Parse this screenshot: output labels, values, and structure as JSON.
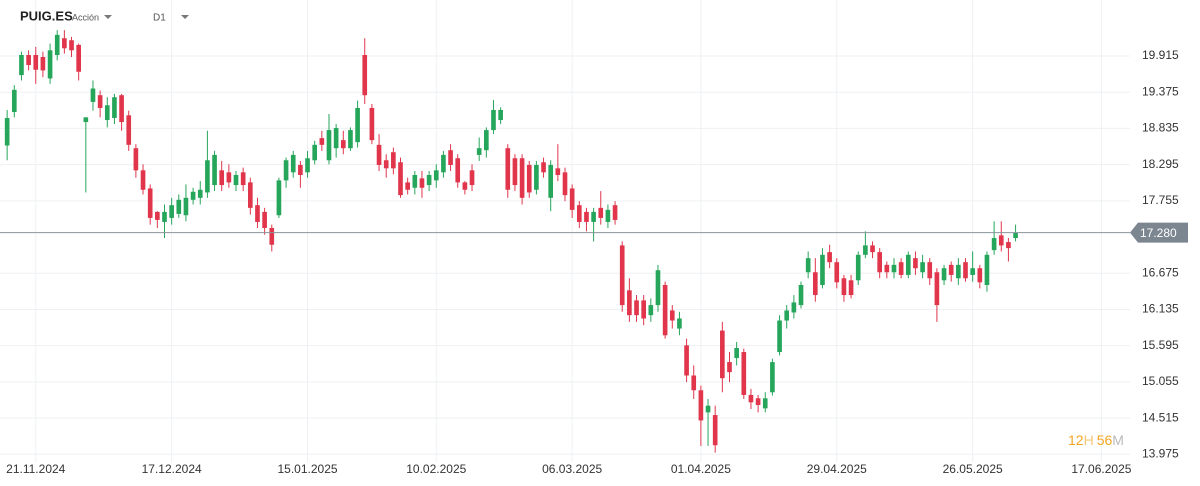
{
  "chart_data": {
    "type": "candlestick",
    "symbol": "PUIG.ES",
    "asset_type": "Acción",
    "timeframe": "D1",
    "up_color": "#26a65b",
    "down_color": "#e0354b",
    "ylim": [
      13.86,
      20.75
    ],
    "yticks": [
      13.975,
      14.515,
      15.055,
      15.595,
      16.135,
      16.675,
      17.755,
      18.295,
      18.835,
      19.375,
      19.915
    ],
    "xlim": [
      -1,
      157
    ],
    "xticks": [
      {
        "value": 4,
        "label": "21.11.2024"
      },
      {
        "value": 23,
        "label": "17.12.2024"
      },
      {
        "value": 42,
        "label": "15.01.2025"
      },
      {
        "value": 60,
        "label": "10.02.2025"
      },
      {
        "value": 79,
        "label": "06.03.2025"
      },
      {
        "value": 97,
        "label": "01.04.2025"
      },
      {
        "value": 116,
        "label": "29.04.2025"
      },
      {
        "value": 135,
        "label": "26.05.2025"
      },
      {
        "value": 153,
        "label": "17.06.2025"
      }
    ],
    "grid": true,
    "last_price": {
      "value": 17.28,
      "label": "17.280"
    },
    "countdown": {
      "hours": 12,
      "hours_unit": "H",
      "minutes": 56,
      "minutes_unit": "M"
    },
    "ohlc": [
      [
        18.58,
        19.11,
        18.36,
        18.99
      ],
      [
        19.08,
        19.48,
        19.0,
        19.41
      ],
      [
        19.63,
        19.98,
        19.55,
        19.93
      ],
      [
        19.93,
        20.0,
        19.7,
        19.78
      ],
      [
        19.93,
        20.05,
        19.5,
        19.71
      ],
      [
        19.9,
        19.98,
        19.6,
        19.7
      ],
      [
        19.58,
        20.1,
        19.5,
        20.0
      ],
      [
        19.93,
        20.3,
        19.85,
        20.23
      ],
      [
        20.18,
        20.3,
        19.95,
        20.03
      ],
      [
        20.15,
        20.2,
        19.9,
        20.0
      ],
      [
        20.08,
        20.1,
        19.55,
        19.68
      ],
      [
        18.93,
        19.0,
        17.88,
        19.0
      ],
      [
        19.23,
        19.55,
        19.1,
        19.43
      ],
      [
        19.33,
        19.4,
        19.0,
        19.14
      ],
      [
        18.96,
        19.3,
        18.85,
        19.18
      ],
      [
        18.99,
        19.35,
        18.9,
        19.3
      ],
      [
        19.33,
        19.35,
        18.8,
        18.93
      ],
      [
        19.03,
        19.1,
        18.5,
        18.59
      ],
      [
        18.54,
        18.6,
        18.1,
        18.21
      ],
      [
        18.21,
        18.3,
        17.85,
        17.92
      ],
      [
        17.94,
        18.0,
        17.4,
        17.5
      ],
      [
        17.59,
        17.6,
        17.35,
        17.47
      ],
      [
        17.44,
        17.7,
        17.2,
        17.59
      ],
      [
        17.5,
        17.8,
        17.4,
        17.69
      ],
      [
        17.56,
        17.85,
        17.5,
        17.77
      ],
      [
        17.54,
        18.0,
        17.45,
        17.8
      ],
      [
        17.77,
        17.95,
        17.7,
        17.89
      ],
      [
        17.8,
        18.05,
        17.7,
        17.92
      ],
      [
        17.88,
        18.8,
        17.8,
        18.36
      ],
      [
        17.99,
        18.5,
        17.9,
        18.44
      ],
      [
        18.21,
        18.35,
        17.9,
        17.99
      ],
      [
        18.18,
        18.3,
        17.95,
        18.03
      ],
      [
        17.99,
        18.2,
        17.9,
        18.14
      ],
      [
        18.18,
        18.25,
        17.9,
        17.99
      ],
      [
        18.03,
        18.1,
        17.55,
        17.65
      ],
      [
        17.69,
        17.8,
        17.35,
        17.44
      ],
      [
        17.59,
        17.65,
        17.25,
        17.35
      ],
      [
        17.35,
        17.4,
        17.0,
        17.1
      ],
      [
        17.54,
        18.1,
        17.5,
        18.06
      ],
      [
        18.06,
        18.4,
        17.95,
        18.36
      ],
      [
        18.18,
        18.5,
        18.1,
        18.44
      ],
      [
        18.29,
        18.35,
        17.95,
        18.14
      ],
      [
        18.18,
        18.5,
        18.1,
        18.39
      ],
      [
        18.36,
        18.65,
        18.3,
        18.59
      ],
      [
        18.69,
        18.8,
        18.5,
        18.59
      ],
      [
        18.36,
        19.05,
        18.3,
        18.81
      ],
      [
        18.54,
        18.9,
        18.4,
        18.84
      ],
      [
        18.66,
        18.8,
        18.45,
        18.54
      ],
      [
        18.54,
        18.85,
        18.5,
        18.81
      ],
      [
        18.63,
        19.25,
        18.55,
        19.14
      ],
      [
        19.93,
        20.18,
        19.2,
        19.33
      ],
      [
        19.14,
        19.2,
        18.6,
        18.66
      ],
      [
        18.59,
        18.75,
        18.2,
        18.29
      ],
      [
        18.36,
        18.45,
        18.1,
        18.24
      ],
      [
        18.48,
        18.55,
        18.15,
        18.24
      ],
      [
        18.33,
        18.4,
        17.8,
        17.84
      ],
      [
        18.03,
        18.1,
        17.85,
        17.92
      ],
      [
        17.95,
        18.2,
        17.85,
        18.14
      ],
      [
        18.09,
        18.2,
        17.8,
        17.95
      ],
      [
        17.99,
        18.2,
        17.9,
        18.14
      ],
      [
        18.06,
        18.3,
        17.95,
        18.21
      ],
      [
        18.18,
        18.5,
        18.1,
        18.44
      ],
      [
        18.51,
        18.6,
        18.2,
        18.29
      ],
      [
        18.39,
        18.45,
        17.95,
        18.03
      ],
      [
        18.03,
        18.05,
        17.85,
        17.92
      ],
      [
        18.21,
        18.3,
        17.9,
        17.99
      ],
      [
        18.44,
        18.7,
        18.35,
        18.54
      ],
      [
        18.51,
        18.85,
        18.4,
        18.81
      ],
      [
        18.81,
        19.26,
        18.75,
        19.11
      ],
      [
        18.96,
        19.15,
        18.9,
        19.11
      ],
      [
        18.54,
        18.6,
        17.8,
        17.92
      ],
      [
        18.39,
        18.45,
        17.9,
        17.99
      ],
      [
        18.39,
        18.45,
        17.7,
        17.8
      ],
      [
        18.29,
        18.35,
        17.8,
        17.88
      ],
      [
        17.92,
        18.35,
        17.85,
        18.29
      ],
      [
        18.33,
        18.4,
        18.1,
        18.18
      ],
      [
        17.8,
        18.36,
        17.6,
        18.29
      ],
      [
        18.24,
        18.6,
        18.05,
        18.14
      ],
      [
        18.18,
        18.25,
        17.75,
        17.84
      ],
      [
        17.94,
        18.0,
        17.5,
        17.62
      ],
      [
        17.69,
        17.75,
        17.35,
        17.44
      ],
      [
        17.59,
        17.65,
        17.3,
        17.44
      ],
      [
        17.44,
        17.65,
        17.15,
        17.59
      ],
      [
        17.65,
        17.9,
        17.4,
        17.5
      ],
      [
        17.44,
        17.7,
        17.35,
        17.62
      ],
      [
        17.69,
        17.75,
        17.4,
        17.47
      ],
      [
        17.09,
        17.15,
        16.1,
        16.2
      ],
      [
        16.42,
        16.6,
        15.95,
        16.05
      ],
      [
        16.27,
        16.35,
        15.95,
        16.05
      ],
      [
        16.27,
        16.35,
        15.9,
        16.0
      ],
      [
        16.05,
        16.3,
        15.95,
        16.2
      ],
      [
        16.2,
        16.8,
        16.1,
        16.72
      ],
      [
        16.5,
        16.55,
        15.7,
        15.75
      ],
      [
        16.12,
        16.2,
        15.85,
        15.97
      ],
      [
        15.85,
        16.1,
        15.75,
        16.0
      ],
      [
        15.6,
        15.7,
        15.05,
        15.15
      ],
      [
        15.15,
        15.3,
        14.8,
        14.93
      ],
      [
        14.93,
        15.0,
        14.1,
        14.48
      ],
      [
        14.6,
        14.8,
        14.1,
        14.7
      ],
      [
        14.56,
        14.7,
        14.0,
        14.11
      ],
      [
        15.82,
        15.95,
        14.9,
        15.11
      ],
      [
        15.35,
        15.5,
        15.05,
        15.2
      ],
      [
        15.41,
        15.65,
        15.3,
        15.56
      ],
      [
        15.5,
        15.55,
        14.8,
        14.86
      ],
      [
        14.86,
        14.95,
        14.65,
        14.75
      ],
      [
        14.81,
        14.86,
        14.6,
        14.71
      ],
      [
        14.66,
        14.9,
        14.6,
        14.81
      ],
      [
        14.9,
        15.4,
        14.85,
        15.35
      ],
      [
        15.5,
        16.05,
        15.45,
        15.97
      ],
      [
        15.97,
        16.2,
        15.85,
        16.12
      ],
      [
        16.09,
        16.35,
        16.0,
        16.24
      ],
      [
        16.2,
        16.55,
        16.15,
        16.5
      ],
      [
        16.69,
        17.0,
        16.6,
        16.9
      ],
      [
        16.69,
        16.9,
        16.25,
        16.35
      ],
      [
        16.5,
        17.05,
        16.45,
        16.95
      ],
      [
        16.99,
        17.1,
        16.75,
        16.84
      ],
      [
        16.84,
        16.9,
        16.45,
        16.54
      ],
      [
        16.6,
        16.65,
        16.25,
        16.35
      ],
      [
        16.57,
        16.65,
        16.3,
        16.35
      ],
      [
        16.57,
        17.0,
        16.5,
        16.95
      ],
      [
        16.95,
        17.3,
        16.9,
        17.09
      ],
      [
        17.09,
        17.15,
        16.9,
        16.99
      ],
      [
        16.99,
        17.05,
        16.6,
        16.69
      ],
      [
        16.8,
        16.85,
        16.6,
        16.69
      ],
      [
        16.69,
        16.9,
        16.6,
        16.8
      ],
      [
        16.84,
        16.9,
        16.6,
        16.65
      ],
      [
        16.65,
        17.0,
        16.6,
        16.95
      ],
      [
        16.9,
        17.0,
        16.65,
        16.75
      ],
      [
        16.69,
        16.95,
        16.6,
        16.84
      ],
      [
        16.84,
        16.9,
        16.5,
        16.6
      ],
      [
        16.69,
        16.75,
        15.95,
        16.2
      ],
      [
        16.57,
        16.8,
        16.5,
        16.75
      ],
      [
        16.8,
        16.85,
        16.55,
        16.65
      ],
      [
        16.6,
        16.9,
        16.5,
        16.8
      ],
      [
        16.84,
        16.9,
        16.55,
        16.6
      ],
      [
        16.65,
        17.0,
        16.55,
        16.75
      ],
      [
        16.75,
        16.8,
        16.45,
        16.54
      ],
      [
        16.5,
        17.0,
        16.4,
        16.95
      ],
      [
        17.02,
        17.45,
        16.95,
        17.2
      ],
      [
        17.24,
        17.45,
        17.0,
        17.09
      ],
      [
        17.14,
        17.2,
        16.85,
        17.05
      ],
      [
        17.2,
        17.4,
        17.15,
        17.28
      ]
    ]
  }
}
